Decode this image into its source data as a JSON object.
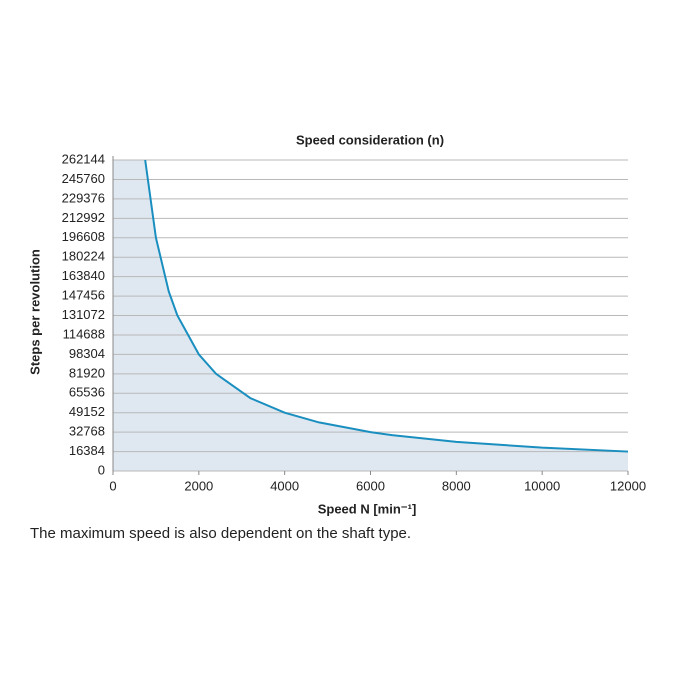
{
  "chart_data": {
    "type": "line",
    "title": "Speed consideration (n)",
    "x_label": "Speed N [min⁻¹]",
    "y_label": "Steps per revolution",
    "caption": "The maximum speed is also dependent on the shaft type.",
    "x": [
      750,
      1000,
      1300,
      1500,
      2000,
      2400,
      3200,
      4000,
      4800,
      6000,
      6500,
      8000,
      10000,
      12000
    ],
    "series": [
      {
        "name": "Steps per revolution",
        "color": "#1a8fbf",
        "values": [
          262144,
          196608,
          151236,
          131072,
          98304,
          81920,
          61440,
          49152,
          40960,
          32768,
          30247,
          24576,
          19661,
          16384
        ]
      }
    ],
    "area_color": "#dfe8f1",
    "xlim": [
      0,
      12000
    ],
    "xticks": [
      0,
      2000,
      4000,
      6000,
      8000,
      10000,
      12000
    ],
    "ylim": [
      0,
      262144
    ],
    "yticks": [
      0,
      16384,
      32768,
      49152,
      65536,
      81920,
      98304,
      114688,
      131072,
      147456,
      163840,
      180224,
      196608,
      212992,
      229376,
      245760,
      262144
    ],
    "grid": true
  }
}
